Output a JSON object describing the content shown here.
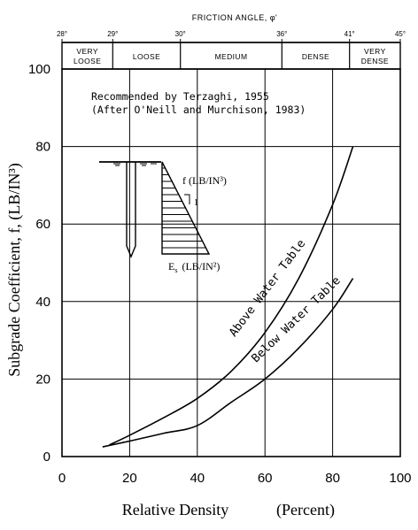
{
  "chart_data": {
    "type": "line",
    "xlabel_main": "Relative Density",
    "xlabel_unit": "(Percent)",
    "ylabel": "Subgrade Coefficient, f, (LB/IN³)",
    "xlim": [
      0,
      100
    ],
    "ylim": [
      0,
      100
    ],
    "x_ticks": [
      "0",
      "20",
      "40",
      "60",
      "80",
      "100"
    ],
    "y_ticks": [
      "0",
      "20",
      "40",
      "60",
      "80",
      "100"
    ],
    "grid": true,
    "top_axis": {
      "title": "FRICTION ANGLE, φ'",
      "ticks": [
        {
          "x": 0,
          "label": "28°"
        },
        {
          "x": 15,
          "label": "29°"
        },
        {
          "x": 35,
          "label": "30°"
        },
        {
          "x": 65,
          "label": "36°"
        },
        {
          "x": 85,
          "label": "41°"
        },
        {
          "x": 100,
          "label": "45°"
        }
      ]
    },
    "density_zones": [
      {
        "from": 0,
        "to": 15,
        "label_lines": [
          "VERY",
          "LOOSE"
        ]
      },
      {
        "from": 15,
        "to": 35,
        "label_lines": [
          "LOOSE"
        ]
      },
      {
        "from": 35,
        "to": 65,
        "label_lines": [
          "MEDIUM"
        ]
      },
      {
        "from": 65,
        "to": 85,
        "label_lines": [
          "DENSE"
        ]
      },
      {
        "from": 85,
        "to": 100,
        "label_lines": [
          "VERY",
          "DENSE"
        ]
      }
    ],
    "annotation": {
      "line1": "Recommended by Terzaghi, 1955",
      "line2": "(After O'Neill and Murchison, 1983)"
    },
    "series": [
      {
        "name": "Above Water Table",
        "x": [
          14,
          20,
          30,
          40,
          50,
          60,
          70,
          80,
          86
        ],
        "y": [
          3,
          5.5,
          10,
          15,
          22,
          32,
          46,
          65,
          80
        ]
      },
      {
        "name": "Below Water Table",
        "x": [
          12,
          20,
          30,
          40,
          50,
          60,
          70,
          80,
          86
        ],
        "y": [
          2.5,
          4,
          6,
          8,
          14,
          20,
          28,
          38,
          46
        ]
      }
    ],
    "inset": {
      "f_label": "f (LB/IN³)",
      "slope_label": "1",
      "es_label": "E (LB/IN²)",
      "es_subscript": "s"
    }
  }
}
